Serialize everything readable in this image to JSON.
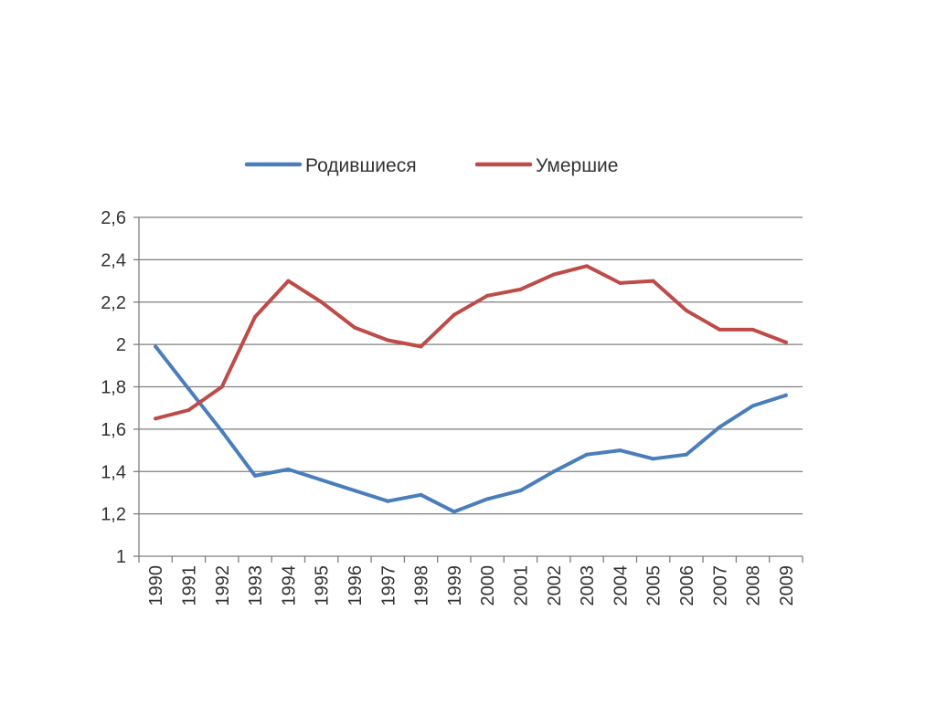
{
  "chart_data": {
    "type": "line",
    "title": "",
    "xlabel": "",
    "ylabel": "",
    "ylim": [
      1,
      2.6
    ],
    "y_ticks": [
      "1",
      "1,2",
      "1,4",
      "1,6",
      "1,8",
      "2",
      "2,2",
      "2,4",
      "2,6"
    ],
    "y_tick_values": [
      1,
      1.2,
      1.4,
      1.6,
      1.8,
      2,
      2.2,
      2.4,
      2.6
    ],
    "grid": true,
    "legend_position": "top",
    "categories": [
      "1990",
      "1991",
      "1992",
      "1993",
      "1994",
      "1995",
      "1996",
      "1997",
      "1998",
      "1999",
      "2000",
      "2001",
      "2002",
      "2003",
      "2004",
      "2005",
      "2006",
      "2007",
      "2008",
      "2009"
    ],
    "series": [
      {
        "name": "Родившиеся",
        "color": "#4a7ebb",
        "values": [
          1.99,
          1.79,
          1.59,
          1.38,
          1.41,
          1.36,
          1.31,
          1.26,
          1.29,
          1.21,
          1.27,
          1.31,
          1.4,
          1.48,
          1.5,
          1.46,
          1.48,
          1.61,
          1.71,
          1.76
        ]
      },
      {
        "name": "Умершие",
        "color": "#be4b48",
        "values": [
          1.65,
          1.69,
          1.8,
          2.13,
          2.3,
          2.2,
          2.08,
          2.02,
          1.99,
          2.14,
          2.23,
          2.26,
          2.33,
          2.37,
          2.29,
          2.3,
          2.16,
          2.07,
          2.07,
          2.01
        ]
      }
    ]
  }
}
